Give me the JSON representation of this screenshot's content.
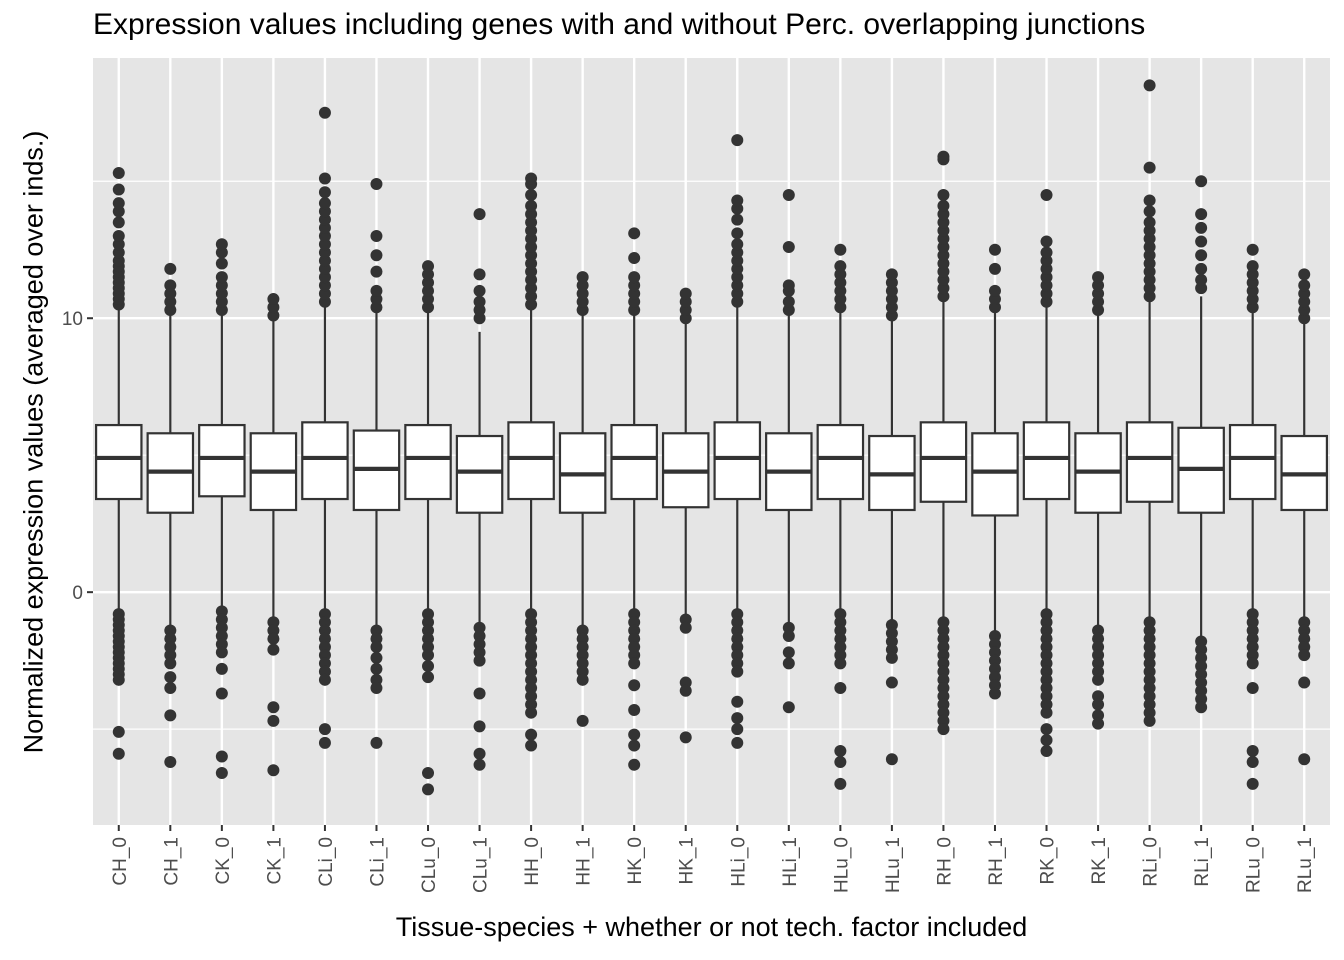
{
  "chart_data": {
    "type": "boxplot",
    "title": "Expression values including genes with and without Perc. overlapping junctions",
    "xlabel": "Tissue-species + whether or not tech. factor included",
    "ylabel": "Normalized expression values (averaged over inds.)",
    "ylim": [
      -8.5,
      19.5
    ],
    "y_ticks": [
      0,
      10
    ],
    "y_minor_ticks": [
      -5,
      5,
      15
    ],
    "grid": true,
    "background": "#e5e5e5",
    "grid_color": "#ffffff",
    "box_fill": "#ffffff",
    "line_color": "#333333",
    "outlier_color": "#333333",
    "categories": [
      "CH_0",
      "CH_1",
      "CK_0",
      "CK_1",
      "CLi_0",
      "CLi_1",
      "CLu_0",
      "CLu_1",
      "HH_0",
      "HH_1",
      "HK_0",
      "HK_1",
      "HLi_0",
      "HLi_1",
      "HLu_0",
      "HLu_1",
      "RH_0",
      "RH_1",
      "RK_0",
      "RK_1",
      "RLi_0",
      "RLi_1",
      "RLu_0",
      "RLu_1"
    ],
    "boxes": [
      {
        "label": "CH_0",
        "q1": 3.4,
        "median": 4.9,
        "q3": 6.1,
        "whisker_low": -0.6,
        "whisker_high": 10.3,
        "outliers_high": [
          10.5,
          10.7,
          10.9,
          11.1,
          11.3,
          11.5,
          11.7,
          11.9,
          12.1,
          12.4,
          12.7,
          13.0,
          13.5,
          13.9,
          14.2,
          14.7,
          15.3
        ],
        "outliers_low": [
          -0.8,
          -1.0,
          -1.2,
          -1.4,
          -1.6,
          -1.8,
          -2.0,
          -2.2,
          -2.4,
          -2.6,
          -2.8,
          -3.0,
          -3.2,
          -5.1,
          -5.9
        ]
      },
      {
        "label": "CH_1",
        "q1": 2.9,
        "median": 4.4,
        "q3": 5.8,
        "whisker_low": -1.2,
        "whisker_high": 10.1,
        "outliers_high": [
          10.3,
          10.6,
          10.9,
          11.2,
          11.8
        ],
        "outliers_low": [
          -1.4,
          -1.7,
          -2.0,
          -2.3,
          -2.6,
          -3.1,
          -3.5,
          -4.5,
          -6.2
        ]
      },
      {
        "label": "CK_0",
        "q1": 3.5,
        "median": 4.9,
        "q3": 6.1,
        "whisker_low": -0.5,
        "whisker_high": 10.1,
        "outliers_high": [
          10.3,
          10.6,
          10.9,
          11.2,
          11.5,
          12.0,
          12.4,
          12.7
        ],
        "outliers_low": [
          -0.7,
          -1.0,
          -1.3,
          -1.6,
          -1.9,
          -2.2,
          -2.8,
          -3.7,
          -6.0,
          -6.6
        ]
      },
      {
        "label": "CK_1",
        "q1": 3.0,
        "median": 4.4,
        "q3": 5.8,
        "whisker_low": -0.9,
        "whisker_high": 9.9,
        "outliers_high": [
          10.1,
          10.4,
          10.7
        ],
        "outliers_low": [
          -1.1,
          -1.4,
          -1.7,
          -2.1,
          -4.2,
          -4.7,
          -6.5
        ]
      },
      {
        "label": "CLi_0",
        "q1": 3.4,
        "median": 4.9,
        "q3": 6.2,
        "whisker_low": -0.6,
        "whisker_high": 10.4,
        "outliers_high": [
          10.6,
          10.9,
          11.2,
          11.5,
          11.8,
          12.1,
          12.4,
          12.7,
          13.0,
          13.3,
          13.6,
          13.9,
          14.2,
          14.6,
          15.1,
          17.5
        ],
        "outliers_low": [
          -0.8,
          -1.1,
          -1.4,
          -1.7,
          -2.0,
          -2.3,
          -2.6,
          -2.9,
          -3.2,
          -5.0,
          -5.5
        ]
      },
      {
        "label": "CLi_1",
        "q1": 3.0,
        "median": 4.5,
        "q3": 5.9,
        "whisker_low": -1.2,
        "whisker_high": 10.2,
        "outliers_high": [
          10.4,
          10.7,
          11.0,
          11.7,
          12.3,
          13.0,
          14.9
        ],
        "outliers_low": [
          -1.4,
          -1.7,
          -2.0,
          -2.4,
          -2.8,
          -3.2,
          -3.5,
          -5.5
        ]
      },
      {
        "label": "CLu_0",
        "q1": 3.4,
        "median": 4.9,
        "q3": 6.1,
        "whisker_low": -0.6,
        "whisker_high": 10.2,
        "outliers_high": [
          10.4,
          10.7,
          11.0,
          11.3,
          11.6,
          11.9
        ],
        "outliers_low": [
          -0.8,
          -1.1,
          -1.4,
          -1.7,
          -2.0,
          -2.3,
          -2.7,
          -3.1,
          -6.6,
          -7.2
        ]
      },
      {
        "label": "CLu_1",
        "q1": 2.9,
        "median": 4.4,
        "q3": 5.7,
        "whisker_low": -1.1,
        "whisker_high": 9.5,
        "outliers_high": [
          10.0,
          10.3,
          10.6,
          11.0,
          11.6,
          13.8
        ],
        "outliers_low": [
          -1.3,
          -1.6,
          -1.9,
          -2.2,
          -2.5,
          -3.7,
          -4.9,
          -5.9,
          -6.3
        ]
      },
      {
        "label": "HH_0",
        "q1": 3.4,
        "median": 4.9,
        "q3": 6.2,
        "whisker_low": -0.6,
        "whisker_high": 10.3,
        "outliers_high": [
          10.5,
          10.8,
          11.1,
          11.4,
          11.7,
          12.0,
          12.3,
          12.6,
          12.9,
          13.2,
          13.5,
          13.8,
          14.1,
          14.5,
          14.9,
          15.1
        ],
        "outliers_low": [
          -0.8,
          -1.1,
          -1.4,
          -1.7,
          -2.0,
          -2.3,
          -2.6,
          -2.9,
          -3.2,
          -3.5,
          -3.8,
          -4.1,
          -4.4,
          -5.2,
          -5.6
        ]
      },
      {
        "label": "HH_1",
        "q1": 2.9,
        "median": 4.3,
        "q3": 5.8,
        "whisker_low": -1.2,
        "whisker_high": 10.1,
        "outliers_high": [
          10.3,
          10.6,
          10.9,
          11.2,
          11.5
        ],
        "outliers_low": [
          -1.4,
          -1.7,
          -2.0,
          -2.3,
          -2.6,
          -2.9,
          -3.2,
          -4.7
        ]
      },
      {
        "label": "HK_0",
        "q1": 3.4,
        "median": 4.9,
        "q3": 6.1,
        "whisker_low": -0.6,
        "whisker_high": 10.1,
        "outliers_high": [
          10.3,
          10.6,
          10.9,
          11.2,
          11.5,
          12.2,
          13.1
        ],
        "outliers_low": [
          -0.8,
          -1.1,
          -1.4,
          -1.7,
          -2.0,
          -2.3,
          -2.6,
          -3.4,
          -4.3,
          -5.2,
          -5.6,
          -6.3
        ]
      },
      {
        "label": "HK_1",
        "q1": 3.1,
        "median": 4.4,
        "q3": 5.8,
        "whisker_low": -0.9,
        "whisker_high": 9.8,
        "outliers_high": [
          10.0,
          10.3,
          10.6,
          10.9
        ],
        "outliers_low": [
          -1.0,
          -1.3,
          -3.3,
          -3.6,
          -5.3
        ]
      },
      {
        "label": "HLi_0",
        "q1": 3.4,
        "median": 4.9,
        "q3": 6.2,
        "whisker_low": -0.6,
        "whisker_high": 10.4,
        "outliers_high": [
          10.6,
          10.9,
          11.2,
          11.5,
          11.8,
          12.1,
          12.4,
          12.7,
          13.1,
          13.6,
          14.0,
          14.3,
          16.5
        ],
        "outliers_low": [
          -0.8,
          -1.1,
          -1.4,
          -1.7,
          -2.0,
          -2.3,
          -2.6,
          -2.9,
          -4.0,
          -4.6,
          -5.0,
          -5.5
        ]
      },
      {
        "label": "HLi_1",
        "q1": 3.0,
        "median": 4.4,
        "q3": 5.8,
        "whisker_low": -1.1,
        "whisker_high": 10.1,
        "outliers_high": [
          10.3,
          10.6,
          11.0,
          11.2,
          12.6,
          14.5
        ],
        "outliers_low": [
          -1.3,
          -1.6,
          -2.2,
          -2.6,
          -4.2
        ]
      },
      {
        "label": "HLu_0",
        "q1": 3.4,
        "median": 4.9,
        "q3": 6.1,
        "whisker_low": -0.6,
        "whisker_high": 10.2,
        "outliers_high": [
          10.4,
          10.7,
          11.0,
          11.3,
          11.6,
          11.9,
          12.5
        ],
        "outliers_low": [
          -0.8,
          -1.1,
          -1.4,
          -1.7,
          -2.0,
          -2.3,
          -2.6,
          -3.5,
          -5.8,
          -6.2,
          -7.0
        ]
      },
      {
        "label": "HLu_1",
        "q1": 3.0,
        "median": 4.3,
        "q3": 5.7,
        "whisker_low": -1.0,
        "whisker_high": 9.9,
        "outliers_high": [
          10.1,
          10.4,
          10.7,
          11.0,
          11.3,
          11.6
        ],
        "outliers_low": [
          -1.2,
          -1.5,
          -1.8,
          -2.1,
          -2.4,
          -3.3,
          -6.1
        ]
      },
      {
        "label": "RH_0",
        "q1": 3.3,
        "median": 4.9,
        "q3": 6.2,
        "whisker_low": -0.9,
        "whisker_high": 10.6,
        "outliers_high": [
          10.8,
          11.1,
          11.4,
          11.7,
          12.0,
          12.3,
          12.6,
          12.9,
          13.2,
          13.5,
          13.8,
          14.1,
          14.5,
          15.8,
          15.9
        ],
        "outliers_low": [
          -1.1,
          -1.4,
          -1.7,
          -2.0,
          -2.3,
          -2.6,
          -2.9,
          -3.2,
          -3.5,
          -3.8,
          -4.1,
          -4.4,
          -4.7,
          -5.0
        ]
      },
      {
        "label": "RH_1",
        "q1": 2.8,
        "median": 4.4,
        "q3": 5.8,
        "whisker_low": -1.4,
        "whisker_high": 10.2,
        "outliers_high": [
          10.4,
          10.7,
          11.0,
          11.8,
          12.5
        ],
        "outliers_low": [
          -1.6,
          -1.9,
          -2.2,
          -2.5,
          -2.8,
          -3.1,
          -3.4,
          -3.7
        ]
      },
      {
        "label": "RK_0",
        "q1": 3.4,
        "median": 4.9,
        "q3": 6.2,
        "whisker_low": -0.6,
        "whisker_high": 10.4,
        "outliers_high": [
          10.6,
          10.9,
          11.2,
          11.5,
          11.8,
          12.1,
          12.4,
          12.8,
          14.5
        ],
        "outliers_low": [
          -0.8,
          -1.1,
          -1.4,
          -1.7,
          -2.0,
          -2.3,
          -2.6,
          -2.9,
          -3.2,
          -3.5,
          -3.8,
          -4.1,
          -4.4,
          -5.0,
          -5.4,
          -5.8
        ]
      },
      {
        "label": "RK_1",
        "q1": 2.9,
        "median": 4.4,
        "q3": 5.8,
        "whisker_low": -1.2,
        "whisker_high": 10.1,
        "outliers_high": [
          10.3,
          10.6,
          10.9,
          11.2,
          11.5
        ],
        "outliers_low": [
          -1.4,
          -1.7,
          -2.0,
          -2.3,
          -2.6,
          -2.9,
          -3.2,
          -3.8,
          -4.1,
          -4.5,
          -4.8
        ]
      },
      {
        "label": "RLi_0",
        "q1": 3.3,
        "median": 4.9,
        "q3": 6.2,
        "whisker_low": -0.9,
        "whisker_high": 10.6,
        "outliers_high": [
          10.8,
          11.1,
          11.4,
          11.7,
          12.0,
          12.3,
          12.6,
          12.9,
          13.2,
          13.5,
          13.9,
          14.3,
          15.5,
          18.5
        ],
        "outliers_low": [
          -1.1,
          -1.4,
          -1.7,
          -2.0,
          -2.3,
          -2.6,
          -2.9,
          -3.2,
          -3.5,
          -3.8,
          -4.1,
          -4.4,
          -4.7
        ]
      },
      {
        "label": "RLi_1",
        "q1": 2.9,
        "median": 4.5,
        "q3": 6.0,
        "whisker_low": -1.6,
        "whisker_high": 10.8,
        "outliers_high": [
          11.1,
          11.4,
          11.8,
          12.3,
          12.8,
          13.3,
          13.8,
          15.0
        ],
        "outliers_low": [
          -1.8,
          -2.1,
          -2.4,
          -2.7,
          -3.0,
          -3.3,
          -3.6,
          -3.9,
          -4.2
        ]
      },
      {
        "label": "RLu_0",
        "q1": 3.4,
        "median": 4.9,
        "q3": 6.1,
        "whisker_low": -0.6,
        "whisker_high": 10.2,
        "outliers_high": [
          10.4,
          10.7,
          11.0,
          11.3,
          11.6,
          11.9,
          12.5
        ],
        "outliers_low": [
          -0.8,
          -1.1,
          -1.4,
          -1.7,
          -2.0,
          -2.3,
          -2.6,
          -3.5,
          -5.8,
          -6.2,
          -7.0
        ]
      },
      {
        "label": "RLu_1",
        "q1": 3.0,
        "median": 4.3,
        "q3": 5.7,
        "whisker_low": -0.9,
        "whisker_high": 9.8,
        "outliers_high": [
          10.0,
          10.3,
          10.6,
          10.9,
          11.2,
          11.6
        ],
        "outliers_low": [
          -1.1,
          -1.4,
          -1.7,
          -2.0,
          -2.3,
          -3.3,
          -6.1
        ]
      }
    ]
  }
}
